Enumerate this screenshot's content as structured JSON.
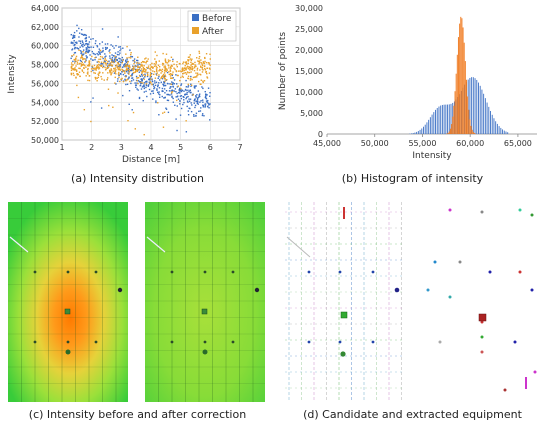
{
  "captions": {
    "a": "(a) Intensity distribution",
    "b": "(b) Histogram of intensity",
    "c": "(c) Intensity before and after correction",
    "d": "(d) Candidate and extracted equipment"
  },
  "colors": {
    "before": "#3a6fc4",
    "after": "#e9a12a",
    "hist_before": "#3a6fc4",
    "hist_after": "#f07a1e"
  },
  "chart_data": [
    {
      "type": "scatter",
      "xlabel": "Distance [m]",
      "ylabel": "Intensity",
      "xlim": [
        1,
        7
      ],
      "ylim": [
        50000,
        64000
      ],
      "x_ticks": [
        "1",
        "2",
        "3",
        "4",
        "5",
        "6",
        "7"
      ],
      "y_ticks": [
        "50,000",
        "52,000",
        "54,000",
        "56,000",
        "58,000",
        "60,000",
        "62,000",
        "64,000"
      ],
      "grid": true,
      "legend": "top-right",
      "series": [
        {
          "name": "Before",
          "trend": [
            [
              1.3,
              60300
            ],
            [
              2.0,
              59500
            ],
            [
              3.0,
              57800
            ],
            [
              4.0,
              56000
            ],
            [
              5.0,
              54800
            ],
            [
              6.0,
              54000
            ]
          ],
          "x_range": [
            1.3,
            6.0
          ],
          "spread": 900
        },
        {
          "name": "After",
          "trend": [
            [
              1.3,
              57800
            ],
            [
              2.0,
              57700
            ],
            [
              3.0,
              57600
            ],
            [
              4.0,
              57400
            ],
            [
              5.0,
              57600
            ],
            [
              6.0,
              57700
            ]
          ],
          "x_range": [
            1.3,
            6.0
          ],
          "spread": 700
        }
      ]
    },
    {
      "type": "bar",
      "xlabel": "Intensity",
      "ylabel": "Number of points",
      "xlim": [
        45000,
        67000
      ],
      "ylim": [
        0,
        30000
      ],
      "x_ticks": [
        "45,000",
        "50,000",
        "55,000",
        "60,000",
        "65,000"
      ],
      "y_ticks": [
        "0",
        "5,000",
        "10,000",
        "15,000",
        "20,000",
        "25,000",
        "30,000"
      ],
      "series": [
        {
          "name": "Before",
          "peaks": [
            [
              56800,
              6000,
              1100
            ],
            [
              60200,
              13500,
              1400
            ]
          ]
        },
        {
          "name": "After",
          "peaks": [
            [
              59000,
              28000,
              450
            ]
          ]
        }
      ]
    }
  ],
  "panels": {
    "c": {
      "left_image": "intensity-before-heatmap",
      "right_image": "intensity-after-heatmap"
    },
    "d": {
      "left_image": "candidate-equipment",
      "right_image": "extracted-equipment"
    }
  }
}
